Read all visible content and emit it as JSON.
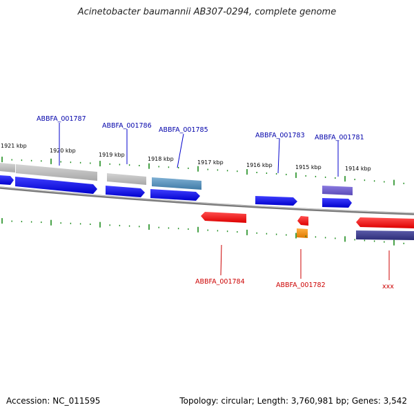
{
  "title": "Acinetobacter baumannii AB307-0294, complete genome",
  "footer": {
    "accession": "Accession: NC_011595",
    "stats": "Topology: circular; Length: 3,760,981 bp; Genes: 3,542"
  },
  "colors": {
    "forward_cds": "#0000ee",
    "reverse_cds": "#ff0000",
    "forward_gene_grey": "#b8b8b8",
    "forward_gene_steel": "#4f88b0",
    "forward_gene_purple": "#6a5acd",
    "reverse_gene_navy": "#3c3c8c",
    "orange": "#ff8c00",
    "ticks": "#1a8a1a",
    "backbone": "#888888",
    "forward_label": "#0000aa",
    "reverse_label": "#cc0000"
  },
  "scale_labels": [
    "1921 kbp",
    "1920 kbp",
    "1919 kbp",
    "1918 kbp",
    "1917 kbp",
    "1916 kbp",
    "1915 kbp",
    "1914 kbp"
  ],
  "gene_labels": {
    "forward": [
      "ABBFA_001787",
      "ABBFA_001786",
      "ABBFA_001785",
      "ABBFA_001783",
      "ABBFA_001781"
    ],
    "reverse": [
      "ABBFA_001784",
      "ABBFA_001782",
      "xxx"
    ]
  }
}
